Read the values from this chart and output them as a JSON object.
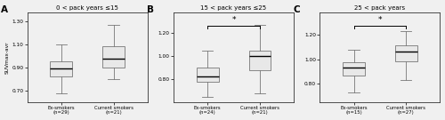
{
  "panels": [
    {
      "label": "A",
      "title": "0 < pack years ≤15",
      "groups": [
        {
          "name": "Ex-smokers (n=29)",
          "median": 0.895,
          "q1": 0.825,
          "q3": 0.955,
          "whisker_low": 0.68,
          "whisker_high": 1.1
        },
        {
          "name": "Current smokers (n=21)",
          "median": 0.975,
          "q1": 0.905,
          "q3": 1.085,
          "whisker_low": 0.8,
          "whisker_high": 1.27
        }
      ],
      "ylim": [
        0.6,
        1.38
      ],
      "yticks": [
        0.7,
        0.9,
        1.1,
        1.3
      ],
      "sig": false
    },
    {
      "label": "B",
      "title": "15 < pack years ≤25",
      "groups": [
        {
          "name": "Ex-smokers (n=24)",
          "median": 0.825,
          "q1": 0.775,
          "q3": 0.9,
          "whisker_low": 0.65,
          "whisker_high": 1.05
        },
        {
          "name": "Current smokers (n=21)",
          "median": 1.0,
          "q1": 0.875,
          "q3": 1.05,
          "whisker_low": 0.68,
          "whisker_high": 1.27
        }
      ],
      "ylim": [
        0.6,
        1.38
      ],
      "yticks": [
        0.8,
        1.0,
        1.2
      ],
      "sig": true
    },
    {
      "label": "C",
      "title": "25 < pack years",
      "groups": [
        {
          "name": "Ex-smokers (n=15)",
          "median": 0.935,
          "q1": 0.865,
          "q3": 0.975,
          "whisker_low": 0.73,
          "whisker_high": 1.08
        },
        {
          "name": "Current smokers (n=27)",
          "median": 1.06,
          "q1": 0.98,
          "q3": 1.115,
          "whisker_low": 0.83,
          "whisker_high": 1.23
        }
      ],
      "ylim": [
        0.65,
        1.38
      ],
      "yticks": [
        0.8,
        1.0,
        1.2
      ],
      "sig": true
    }
  ],
  "ylabel": "SUVmax-avr",
  "box_facecolor": "#e8e8e8",
  "box_edgecolor": "#777777",
  "median_color": "#000000",
  "whisker_color": "#777777",
  "figure_facecolor": "#f0f0f0"
}
